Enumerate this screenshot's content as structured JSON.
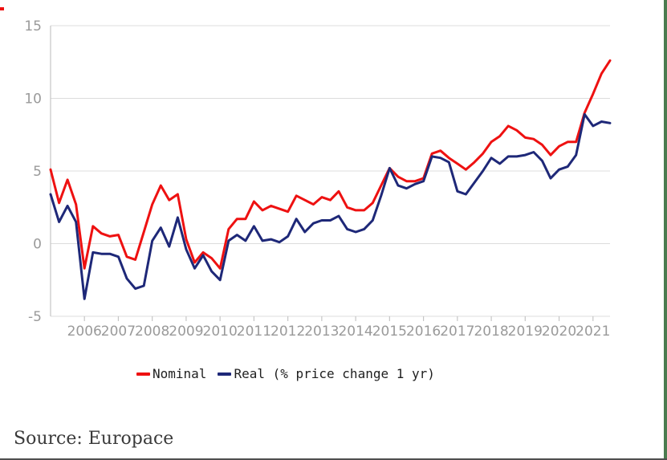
{
  "chart_data": {
    "type": "line",
    "title": "",
    "xlabel": "",
    "ylabel": "",
    "grid": true,
    "legend_position": "bottom",
    "x_axis": {
      "tick_labels": [
        "2006",
        "2007",
        "2008",
        "2009",
        "2010",
        "2011",
        "2012",
        "2013",
        "2014",
        "2015",
        "2016",
        "2017",
        "2018",
        "2019",
        "2020",
        "2021"
      ],
      "start": "2005-Q1",
      "end": "2021-Q3",
      "frequency": "quarterly"
    },
    "y_axis": {
      "tick_labels": [
        "15",
        "10",
        "5",
        "0",
        "-5"
      ],
      "tick_values": [
        15,
        10,
        5,
        0,
        -5
      ],
      "range": [
        -5,
        15
      ]
    },
    "series": [
      {
        "name": "Nominal",
        "color": "#ee1111",
        "values": [
          5.1,
          2.8,
          4.4,
          2.7,
          -1.7,
          1.2,
          0.7,
          0.5,
          0.6,
          -0.9,
          -1.1,
          0.8,
          2.7,
          4.0,
          3.0,
          3.4,
          0.3,
          -1.3,
          -0.6,
          -1.0,
          -1.7,
          1.0,
          1.7,
          1.7,
          2.9,
          2.3,
          2.6,
          2.4,
          2.2,
          3.3,
          3.0,
          2.7,
          3.2,
          3.0,
          3.6,
          2.5,
          2.3,
          2.3,
          2.8,
          4.0,
          5.2,
          4.6,
          4.3,
          4.3,
          4.5,
          6.2,
          6.4,
          5.9,
          5.5,
          5.1,
          5.6,
          6.2,
          7.0,
          7.4,
          8.1,
          7.8,
          7.3,
          7.2,
          6.8,
          6.1,
          6.7,
          7.0,
          7.0,
          9.0,
          10.3,
          11.7,
          12.6
        ]
      },
      {
        "name": "Real (% price change 1 yr)",
        "color": "#1e2878",
        "values": [
          3.4,
          1.5,
          2.6,
          1.5,
          -3.8,
          -0.6,
          -0.7,
          -0.7,
          -0.9,
          -2.4,
          -3.1,
          -2.9,
          0.2,
          1.1,
          -0.2,
          1.8,
          -0.4,
          -1.7,
          -0.8,
          -1.9,
          -2.5,
          0.2,
          0.6,
          0.2,
          1.2,
          0.2,
          0.3,
          0.1,
          0.5,
          1.7,
          0.8,
          1.4,
          1.6,
          1.6,
          1.9,
          1.0,
          0.8,
          1.0,
          1.6,
          3.3,
          5.2,
          4.0,
          3.8,
          4.1,
          4.3,
          6.0,
          5.9,
          5.6,
          3.6,
          3.4,
          4.2,
          5.0,
          5.9,
          5.5,
          6.0,
          6.0,
          6.1,
          6.3,
          5.7,
          4.5,
          5.1,
          5.3,
          6.1,
          8.9,
          8.1,
          8.4,
          8.3
        ]
      }
    ]
  },
  "source": {
    "text": "Source: Europace"
  },
  "decor": {
    "right_border_color": "#4b7b4f",
    "bottom_border_color": "#4f4f4f",
    "corner_artifact_color": "#ee1111",
    "grid_color": "#dcdcdc",
    "axis_color": "#c6c6c6",
    "tick_text_color": "#9a9a9a"
  }
}
